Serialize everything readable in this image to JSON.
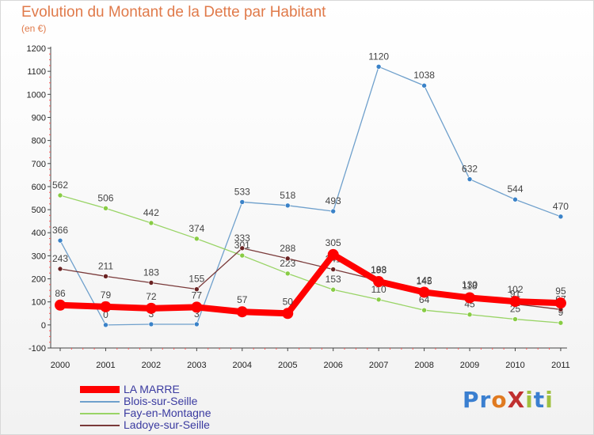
{
  "title": "Evolution du Montant de la Dette par Habitant",
  "subtitle": "(en €)",
  "logo": {
    "text": "ProXiti",
    "colors": [
      "#3a7fd0",
      "#3a7fd0",
      "#e07a20",
      "#c03030",
      "#a0c040",
      "#3a7fd0",
      "#a0c040"
    ]
  },
  "chart_data": {
    "type": "line",
    "x": [
      "2000",
      "2001",
      "2002",
      "2003",
      "2004",
      "2005",
      "2006",
      "2007",
      "2008",
      "2009",
      "2010",
      "2011"
    ],
    "ylim": [
      -100,
      1200
    ],
    "yticks": [
      -100,
      0,
      100,
      200,
      300,
      400,
      500,
      600,
      700,
      800,
      900,
      1000,
      1100,
      1200
    ],
    "grid": false,
    "legend_position": "bottom-left",
    "series": [
      {
        "name": "Blois-sur-Seille",
        "color": "#6fa0cc",
        "marker": "#3a82c8",
        "width": 1.3,
        "radius": 3,
        "values": [
          366,
          0,
          3,
          3,
          533,
          518,
          493,
          1120,
          1038,
          632,
          544,
          470
        ]
      },
      {
        "name": "Fay-en-Montagne",
        "color": "#99d466",
        "marker": "#88cc44",
        "width": 1.3,
        "radius": 3,
        "values": [
          562,
          506,
          442,
          374,
          301,
          223,
          153,
          110,
          64,
          45,
          25,
          9
        ]
      },
      {
        "name": "Ladoye-sur-Seille",
        "color": "#7a3a3a",
        "marker": "#6a2222",
        "width": 1.3,
        "radius": 3,
        "values": [
          243,
          211,
          183,
          155,
          333,
          288,
          241,
          193,
          145,
          130,
          91,
          67
        ]
      },
      {
        "name": "LA MARRE",
        "color": "#ff0000",
        "marker": "#ff0000",
        "width": 8,
        "radius": 7,
        "values": [
          86,
          79,
          72,
          77,
          57,
          50,
          305,
          188,
          142,
          118,
          102,
          95
        ]
      }
    ],
    "legend_order": [
      "LA MARRE",
      "Blois-sur-Seille",
      "Fay-en-Montagne",
      "Ladoye-sur-Seille"
    ]
  }
}
